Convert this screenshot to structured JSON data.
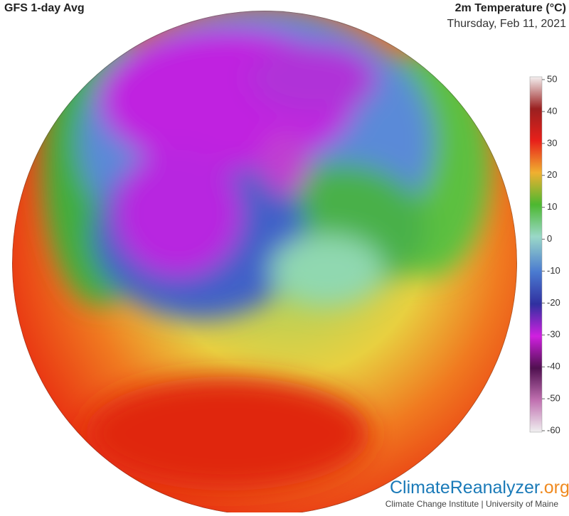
{
  "header": {
    "title": "GFS 1-day Avg",
    "variable": "2m Temperature (°C)",
    "date": "Thursday, Feb 11, 2021"
  },
  "colorbar": {
    "lim": [
      -60,
      50
    ],
    "ticks": [
      50,
      40,
      30,
      20,
      10,
      0,
      -10,
      -20,
      -30,
      -40,
      -50,
      -60
    ]
  },
  "footer": {
    "logo": "ClimateReanalyzer",
    "logo_suffix": ".org",
    "credit": "Climate Change Institute | University of Maine"
  }
}
